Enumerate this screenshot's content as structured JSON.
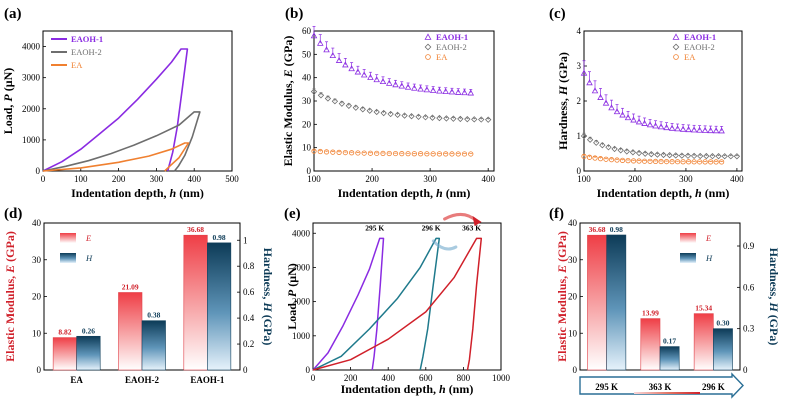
{
  "chart_data": [
    {
      "panel": "(a)",
      "type": "line",
      "xlabel": "Indentation depth, h (nm)",
      "ylabel": "Load, P (μN)",
      "xlim": [
        0,
        500
      ],
      "ylim": [
        0,
        4500
      ],
      "xticks": [
        0,
        100,
        200,
        300,
        400,
        500
      ],
      "yticks": [
        0,
        1000,
        2000,
        3000,
        4000
      ],
      "legend": [
        "EAOH-1",
        "EAOH-2",
        "EA"
      ],
      "series": [
        {
          "name": "EAOH-1",
          "color": "#8a2be2",
          "loading": [
            [
              0,
              0
            ],
            [
              50,
              300
            ],
            [
              100,
              700
            ],
            [
              150,
              1200
            ],
            [
              200,
              1700
            ],
            [
              250,
              2300
            ],
            [
              300,
              2950
            ],
            [
              340,
              3500
            ],
            [
              365,
              3920
            ]
          ],
          "hold": [
            [
              365,
              3920
            ],
            [
              382,
              3920
            ]
          ],
          "unloading": [
            [
              382,
              3920
            ],
            [
              368,
              2600
            ],
            [
              355,
              1400
            ],
            [
              343,
              600
            ],
            [
              330,
              0
            ]
          ]
        },
        {
          "name": "EAOH-2",
          "color": "#6e6e6e",
          "loading": [
            [
              0,
              0
            ],
            [
              60,
              150
            ],
            [
              120,
              330
            ],
            [
              180,
              560
            ],
            [
              240,
              830
            ],
            [
              300,
              1130
            ],
            [
              360,
              1480
            ],
            [
              400,
              1900
            ]
          ],
          "hold": [
            [
              400,
              1900
            ],
            [
              415,
              1900
            ]
          ],
          "unloading": [
            [
              415,
              1900
            ],
            [
              395,
              1100
            ],
            [
              375,
              500
            ],
            [
              358,
              150
            ],
            [
              348,
              0
            ]
          ]
        },
        {
          "name": "EA",
          "color": "#f08030",
          "loading": [
            [
              0,
              0
            ],
            [
              100,
              100
            ],
            [
              200,
              280
            ],
            [
              280,
              480
            ],
            [
              340,
              700
            ],
            [
              375,
              900
            ]
          ],
          "hold": [
            [
              375,
              900
            ],
            [
              385,
              900
            ]
          ],
          "unloading": [
            [
              385,
              900
            ],
            [
              360,
              430
            ],
            [
              335,
              150
            ],
            [
              322,
              0
            ]
          ]
        }
      ]
    },
    {
      "panel": "(b)",
      "type": "scatter",
      "xlabel": "Indentation depth, h (nm)",
      "ylabel": "Elastic Modulus, E (GPa)",
      "xlim": [
        100,
        410
      ],
      "ylim": [
        0,
        60
      ],
      "xticks": [
        100,
        200,
        300,
        400
      ],
      "yticks": [
        0,
        10,
        20,
        30,
        40,
        50,
        60
      ],
      "legend": [
        "EAOH-1",
        "EAOH-2",
        "EA"
      ],
      "series": [
        {
          "name": "EAOH-1",
          "color": "#8a2be2",
          "marker": "triangle",
          "x_start": 100,
          "x_end": 370,
          "e_start": 58,
          "e_end": 33.5,
          "decay": 80,
          "err": 4
        },
        {
          "name": "EAOH-2",
          "color": "#6e6e6e",
          "marker": "diamond",
          "x_start": 100,
          "x_end": 400,
          "e_start": 34,
          "e_end": 22,
          "decay": 90,
          "err": 1.2
        },
        {
          "name": "EA",
          "color": "#f08030",
          "marker": "circle",
          "x_start": 100,
          "x_end": 370,
          "e_start": 8.5,
          "e_end": 7.3,
          "decay": 80,
          "err": 0.4
        }
      ]
    },
    {
      "panel": "(c)",
      "type": "scatter",
      "xlabel": "Indentation depth, h (nm)",
      "ylabel": "Hardness, H (GPa)",
      "xlim": [
        100,
        410
      ],
      "ylim": [
        0,
        4
      ],
      "xticks": [
        100,
        200,
        300,
        400
      ],
      "yticks": [
        0,
        1,
        2,
        3,
        4
      ],
      "legend": [
        "EAOH-1",
        "EAOH-2",
        "EA"
      ],
      "series": [
        {
          "name": "EAOH-1",
          "color": "#8a2be2",
          "marker": "triangle",
          "x_start": 100,
          "x_end": 370,
          "e_start": 2.8,
          "e_end": 1.15,
          "decay": 60,
          "err": 0.35
        },
        {
          "name": "EAOH-2",
          "color": "#6e6e6e",
          "marker": "diamond",
          "x_start": 100,
          "x_end": 400,
          "e_start": 1.0,
          "e_end": 0.42,
          "decay": 60,
          "err": 0.08
        },
        {
          "name": "EA",
          "color": "#f08030",
          "marker": "circle",
          "x_start": 100,
          "x_end": 370,
          "e_start": 0.42,
          "e_end": 0.26,
          "decay": 60,
          "err": 0.04
        }
      ]
    },
    {
      "panel": "(d)",
      "type": "bar",
      "categories": [
        "EA",
        "EAOH-2",
        "EAOH-1"
      ],
      "series": [
        {
          "name": "E",
          "axis": "left",
          "values": [
            8.82,
            21.09,
            36.68
          ],
          "labels": [
            "8.82",
            "21.09",
            "36.68"
          ]
        },
        {
          "name": "H",
          "axis": "right",
          "values": [
            0.26,
            0.38,
            0.98
          ],
          "labels": [
            "0.26",
            "0.38",
            "0.98"
          ]
        }
      ],
      "ylabel_left": "Elastic Modulus, E (GPa)",
      "ylabel_right": "Hardness, H (GPa)",
      "ylim_left": [
        0,
        40
      ],
      "ylim_right": [
        0,
        1.133
      ],
      "yticks_left": [
        0,
        10,
        20,
        30,
        40
      ],
      "yticks_right": [
        0.0,
        0.2,
        0.4,
        0.6,
        0.8,
        1.0
      ]
    },
    {
      "panel": "(e)",
      "type": "line",
      "xlabel": "Indentation depth, h (nm)",
      "ylabel": "Load, P (μN)",
      "xlim": [
        0,
        1000
      ],
      "ylim": [
        0,
        4300
      ],
      "xticks": [
        0,
        200,
        400,
        600,
        800,
        1000
      ],
      "yticks": [
        0,
        1000,
        2000,
        3000,
        4000
      ],
      "series": [
        {
          "name": "295 K",
          "color": "#8a2be2",
          "loading": [
            [
              0,
              0
            ],
            [
              80,
              500
            ],
            [
              160,
              1300
            ],
            [
              240,
              2200
            ],
            [
              300,
              2950
            ],
            [
              355,
              3850
            ]
          ],
          "hold": [
            [
              355,
              3850
            ],
            [
              375,
              3850
            ]
          ],
          "unloading": [
            [
              375,
              3850
            ],
            [
              358,
              2500
            ],
            [
              340,
              1200
            ],
            [
              325,
              400
            ],
            [
              315,
              0
            ]
          ]
        },
        {
          "name": "296 K",
          "color": "#1f7a8c",
          "loading": [
            [
              0,
              0
            ],
            [
              150,
              400
            ],
            [
              300,
              1200
            ],
            [
              450,
              2100
            ],
            [
              570,
              3000
            ],
            [
              655,
              3850
            ]
          ],
          "hold": [
            [
              655,
              3850
            ],
            [
              672,
              3850
            ]
          ],
          "unloading": [
            [
              672,
              3850
            ],
            [
              640,
              2500
            ],
            [
              610,
              1200
            ],
            [
              585,
              400
            ],
            [
              570,
              0
            ]
          ]
        },
        {
          "name": "363 K",
          "color": "#d0202a",
          "loading": [
            [
              0,
              0
            ],
            [
              200,
              300
            ],
            [
              400,
              900
            ],
            [
              600,
              1700
            ],
            [
              750,
              2700
            ],
            [
              870,
              3850
            ]
          ],
          "hold": [
            [
              870,
              3850
            ],
            [
              895,
              3850
            ]
          ],
          "unloading": [
            [
              895,
              3850
            ],
            [
              870,
              2500
            ],
            [
              850,
              1200
            ],
            [
              832,
              300
            ],
            [
              822,
              0
            ]
          ]
        }
      ]
    },
    {
      "panel": "(f)",
      "type": "bar",
      "categories": [
        "295 K",
        "363 K",
        "296 K"
      ],
      "series": [
        {
          "name": "E",
          "axis": "left",
          "values": [
            36.68,
            13.99,
            15.34
          ],
          "labels": [
            "36.68",
            "13.99",
            "15.34"
          ]
        },
        {
          "name": "H",
          "axis": "right",
          "values": [
            0.98,
            0.17,
            0.3
          ],
          "labels": [
            "0.98",
            "0.17",
            "0.30"
          ]
        }
      ],
      "ylabel_left": "Elastic Modulus, E (GPa)",
      "ylabel_right": "Hardness, H (GPa)",
      "ylim_left": [
        0,
        40
      ],
      "ylim_right": [
        0,
        1.067
      ],
      "yticks_left": [
        0,
        10,
        20,
        30,
        40
      ],
      "yticks_right": [
        0.0,
        0.3,
        0.6,
        0.9
      ]
    }
  ]
}
